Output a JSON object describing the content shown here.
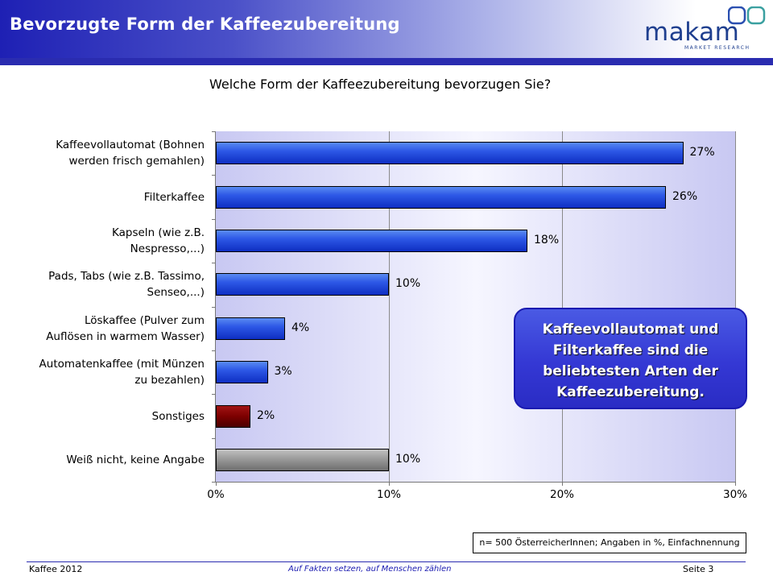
{
  "header": {
    "title": "Bevorzugte Form der Kaffeezubereitung"
  },
  "logo": {
    "name": "makam",
    "tagline": "MARKET RESEARCH"
  },
  "colors": {
    "bar_blue": "#2d58e6",
    "bar_red": "#7c0000",
    "bar_gray": "#9a9a9a",
    "brand": "#2a2cb0"
  },
  "chart_data": {
    "type": "bar",
    "orientation": "horizontal",
    "title": "Welche Form der Kaffeezubereitung bevorzugen Sie?",
    "categories": [
      "Kaffeevollautomat (Bohnen\nwerden frisch gemahlen)",
      "Filterkaffee",
      "Kapseln (wie z.B.\nNespresso,...)",
      "Pads, Tabs (wie z.B. Tassimo,\nSenseo,...)",
      "Löskaffee (Pulver zum\nAuflösen in warmem Wasser)",
      "Automatenkaffee (mit Münzen\nzu bezahlen)",
      "Sonstiges",
      "Weiß nicht, keine Angabe"
    ],
    "values": [
      27,
      26,
      18,
      10,
      4,
      3,
      2,
      10
    ],
    "value_labels": [
      "27%",
      "26%",
      "18%",
      "10%",
      "4%",
      "3%",
      "2%",
      "10%"
    ],
    "bar_colors": [
      "blue",
      "blue",
      "blue",
      "blue",
      "blue",
      "blue",
      "red",
      "gray"
    ],
    "xlim": [
      0,
      30
    ],
    "xticks": [
      0,
      10,
      20,
      30
    ],
    "xtick_labels": [
      "0%",
      "10%",
      "20%",
      "30%"
    ],
    "xlabel": "",
    "ylabel": "",
    "grid": true,
    "annotation": "Kaffeevollautomat und Filterkaffee sind die beliebtesten Arten der Kaffeezubereitung."
  },
  "note": "n= 500 ÖsterreicherInnen; Angaben in %, Einfachnennung",
  "footer": {
    "left": "Kaffee 2012",
    "center": "Auf Fakten setzen, auf Menschen zählen",
    "right": "Seite 3"
  }
}
